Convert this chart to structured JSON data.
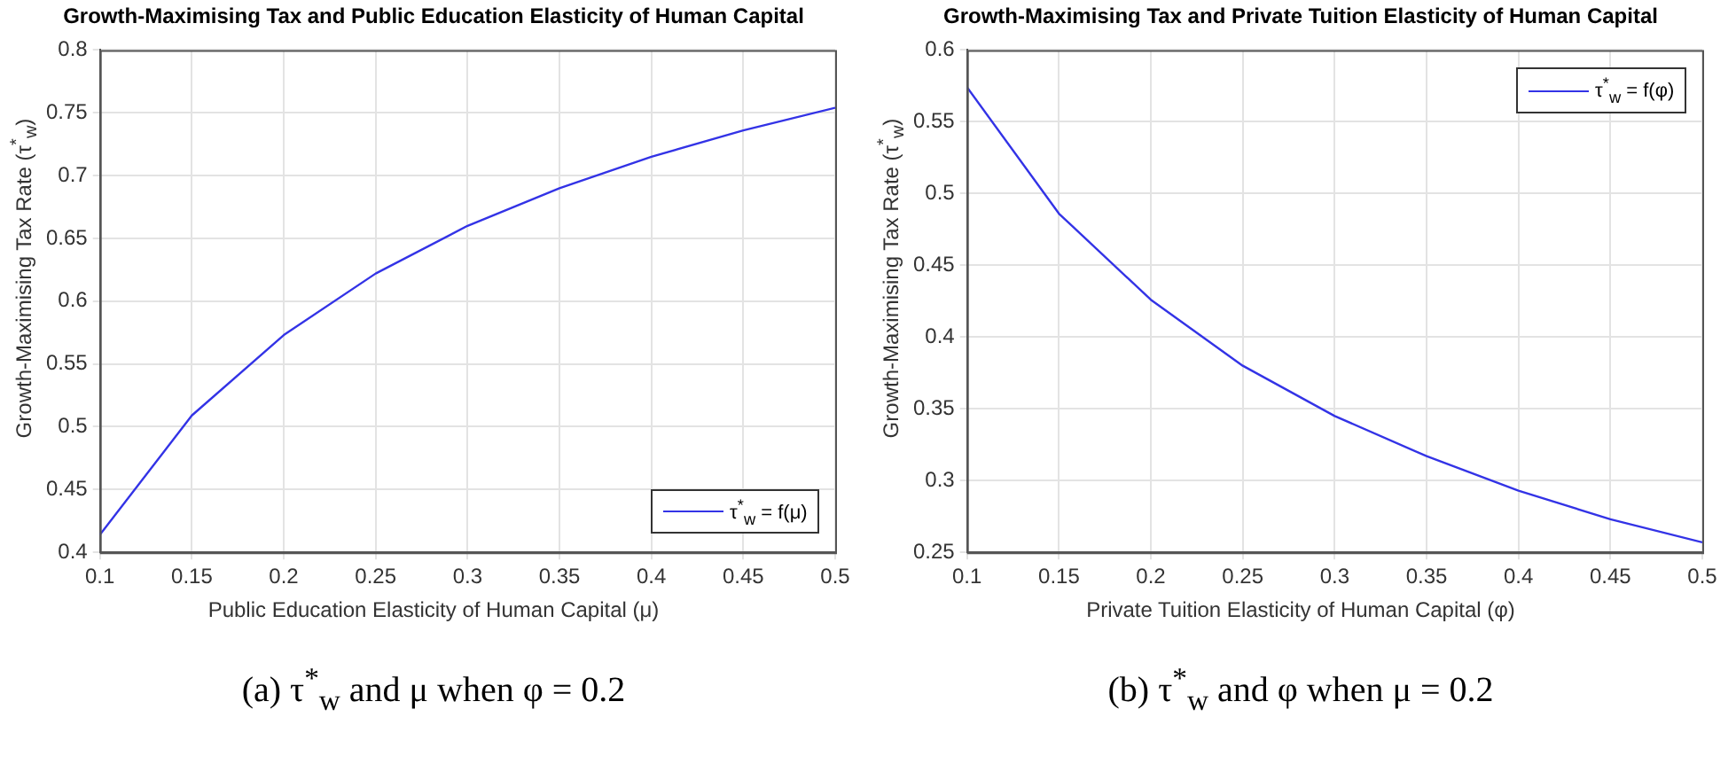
{
  "chart_data": [
    {
      "type": "line",
      "title": "Growth-Maximising Tax and Public Education Elasticity of Human Capital",
      "xlabel": "Public Education Elasticity of Human Capital (μ)",
      "ylabel": "Growth-Maximising Tax Rate (τ$^{*}$$_{w}$)",
      "annotations": [
        "(a) τ$^{*}$$_{w}$ and μ when φ = 0.2"
      ],
      "x": [
        0.1,
        0.15,
        0.2,
        0.25,
        0.3,
        0.35,
        0.4,
        0.45,
        0.5
      ],
      "series": [
        {
          "name": "τ$^{*}$$_{w}$ = f(μ)",
          "color": "#3333e6",
          "values": [
            0.414,
            0.509,
            0.573,
            0.622,
            0.66,
            0.69,
            0.715,
            0.736,
            0.754
          ]
        }
      ],
      "xlim": [
        0.1,
        0.5
      ],
      "xticks": [
        0.1,
        0.15,
        0.2,
        0.25,
        0.3,
        0.35,
        0.4,
        0.45,
        0.5
      ],
      "ylim": [
        0.4,
        0.8
      ],
      "yticks": [
        0.4,
        0.45,
        0.5,
        0.55,
        0.6,
        0.65,
        0.7,
        0.75,
        0.8
      ],
      "grid": true,
      "legend": "bottom right"
    },
    {
      "type": "line",
      "title": "Growth-Maximising Tax and Private Tuition Elasticity of Human Capital",
      "xlabel": "Private Tuition Elasticity of Human Capital (φ)",
      "ylabel": "Growth-Maximising Tax Rate (τ$^{*}$$_{w}$)",
      "annotations": [
        "(b) τ$^{*}$$_{w}$ and φ when μ = 0.2"
      ],
      "x": [
        0.1,
        0.15,
        0.2,
        0.25,
        0.3,
        0.35,
        0.4,
        0.45,
        0.5
      ],
      "series": [
        {
          "name": "τ$^{*}$$_{w}$ = f(φ)",
          "color": "#3333e6",
          "values": [
            0.574,
            0.486,
            0.426,
            0.38,
            0.345,
            0.317,
            0.293,
            0.273,
            0.257
          ]
        }
      ],
      "xlim": [
        0.1,
        0.5
      ],
      "xticks": [
        0.1,
        0.15,
        0.2,
        0.25,
        0.3,
        0.35,
        0.4,
        0.45,
        0.5
      ],
      "ylim": [
        0.25,
        0.6
      ],
      "yticks": [
        0.25,
        0.3,
        0.35,
        0.4,
        0.45,
        0.5,
        0.55,
        0.6
      ],
      "grid": true,
      "legend": "top right"
    }
  ]
}
